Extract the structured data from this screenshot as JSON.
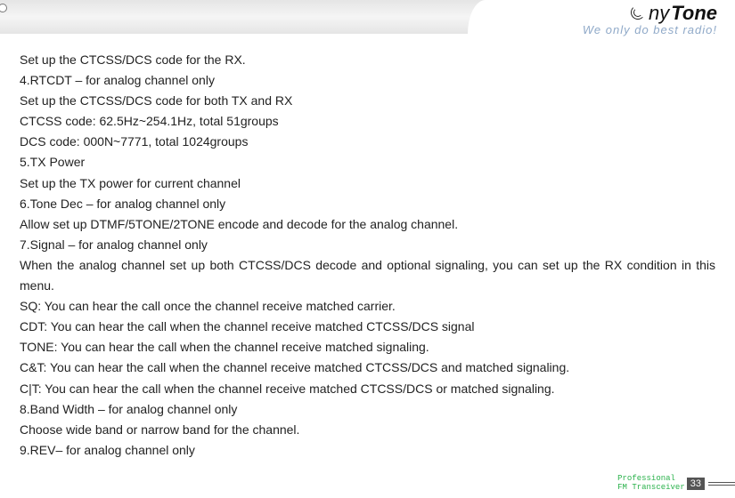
{
  "logo": {
    "part1": "ny",
    "part2": "Tone",
    "slogan": "We only do best radio!"
  },
  "body": {
    "l1": "Set up the CTCSS/DCS code for the RX.",
    "l2": "4.RTCDT – for analog channel only",
    "l3": "Set up the CTCSS/DCS code for both TX and RX",
    "l4": "CTCSS code: 62.5Hz~254.1Hz, total 51groups",
    "l5": "DCS code: 000N~7771, total 1024groups",
    "l6": "5.TX Power",
    "l7": "Set up the TX power for current channel",
    "l8": "6.Tone Dec – for analog channel only",
    "l9": "Allow set up DTMF/5TONE/2TONE encode and decode for the analog channel.",
    "l10": "7.Signal – for analog channel only",
    "l11": "When the analog channel set up both CTCSS/DCS decode and optional signaling, you can set up the RX condition in this menu.",
    "l12": "SQ: You can hear the call once the channel receive matched carrier.",
    "l13": "CDT: You can hear the call when the channel receive matched CTCSS/DCS signal",
    "l14": "TONE: You can hear the call when the channel receive matched signaling.",
    "l15": "C&T: You can hear the call when the channel receive matched CTCSS/DCS and matched signaling.",
    "l16": "C|T: You can hear the call when the channel receive matched CTCSS/DCS or matched signaling.",
    "l17": "8.Band Width – for analog channel only",
    "l18": "Choose wide band or narrow band for the channel.",
    "l19": "9.REV– for analog channel only"
  },
  "footer": {
    "line1": "Professional",
    "line2": "FM Transceiver",
    "page": "33"
  }
}
